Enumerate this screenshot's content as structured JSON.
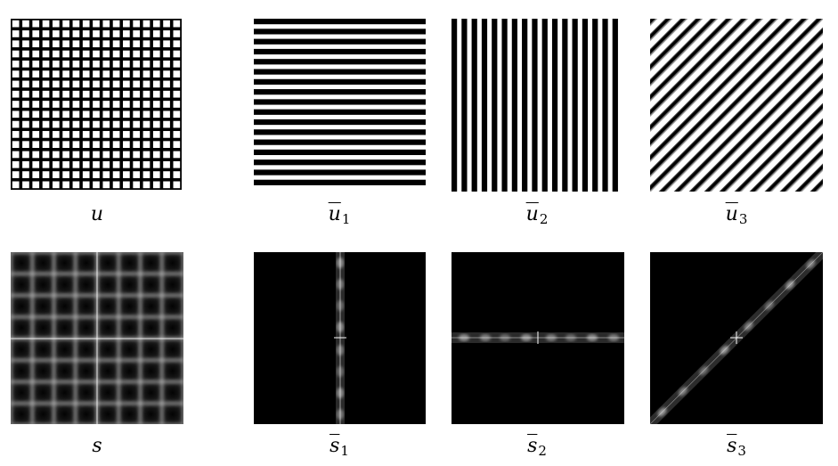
{
  "figure": {
    "top_row": [
      {
        "id": "u",
        "label": "u",
        "sub": ""
      },
      {
        "id": "u1",
        "label": "u",
        "sub": "1"
      },
      {
        "id": "u2",
        "label": "u",
        "sub": "2"
      },
      {
        "id": "u3",
        "label": "u",
        "sub": "3"
      }
    ],
    "bottom_row": [
      {
        "id": "s",
        "label": "s",
        "sub": ""
      },
      {
        "id": "s1",
        "label": "s",
        "sub": "1"
      },
      {
        "id": "s2",
        "label": "s",
        "sub": "2"
      },
      {
        "id": "s3",
        "label": "s",
        "sub": "3"
      }
    ],
    "colors": {
      "ink": "#000000",
      "paper": "#ffffff",
      "spectrum": "#ffffff"
    }
  }
}
